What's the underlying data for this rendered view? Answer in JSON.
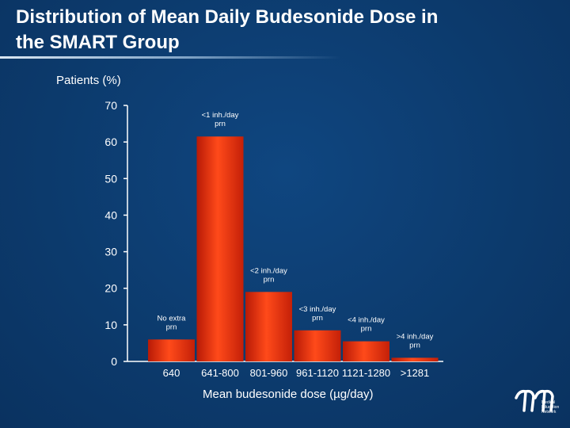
{
  "title": "Distribution of Mean Daily Budesonide Dose in\nthe SMART Group",
  "logo": {
    "line1": "Medical",
    "line2": "Education",
    "line3": "Network"
  },
  "colors": {
    "bar_top": "#ff4a1a",
    "bar_bottom": "#c81e08",
    "axis": "#ffffff",
    "background": "#0d3a6e"
  },
  "chart_data": {
    "type": "bar",
    "title": "",
    "ylabel": "Patients (%)",
    "xlabel": "Mean budesonide dose (µg/day)",
    "ylim": [
      0,
      70
    ],
    "yticks": [
      0,
      10,
      20,
      30,
      40,
      50,
      60,
      70
    ],
    "grid": false,
    "categories": [
      "640",
      "641-800",
      "801-960",
      "961-1120",
      "1121-1280",
      ">1281"
    ],
    "values": [
      6,
      61.5,
      19,
      8.5,
      5.5,
      1
    ],
    "bar_annotations": [
      [
        "No extra",
        "prn"
      ],
      [
        "<1 inh./day",
        "prn"
      ],
      [
        "<2 inh./day",
        "prn"
      ],
      [
        "<3 inh./day",
        "prn"
      ],
      [
        "<4 inh./day",
        "prn"
      ],
      [
        ">4 inh./day",
        "prn"
      ]
    ]
  }
}
